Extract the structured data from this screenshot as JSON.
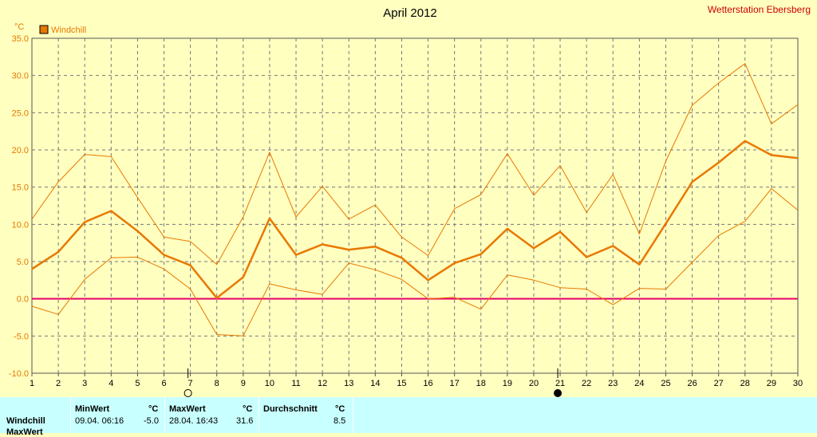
{
  "chart_data": {
    "type": "line",
    "title": "April 2012",
    "station": "Wetterstation Ebersberg",
    "ylabel": "°C",
    "legend": [
      {
        "name": "Windchill",
        "color": "#e87800"
      }
    ],
    "legend_placement": "top-left",
    "ylim": [
      -10,
      35
    ],
    "yticks": [
      "35.0",
      "30.0",
      "25.0",
      "20.0",
      "15.0",
      "10.0",
      "5.0",
      "0.0",
      "-5.0",
      "-10.0"
    ],
    "x": [
      1,
      2,
      3,
      4,
      5,
      6,
      7,
      8,
      9,
      10,
      11,
      12,
      13,
      14,
      15,
      16,
      17,
      18,
      19,
      20,
      21,
      22,
      23,
      24,
      25,
      26,
      27,
      28,
      29,
      30
    ],
    "grid": true,
    "series": [
      {
        "role": "max",
        "values": [
          10.7,
          15.7,
          19.4,
          19.1,
          13.6,
          8.3,
          7.7,
          4.6,
          11.0,
          19.7,
          11.0,
          15.1,
          10.7,
          12.6,
          8.3,
          5.8,
          12.1,
          14.0,
          19.5,
          13.9,
          17.9,
          11.6,
          16.7,
          8.7,
          18.5,
          26.0,
          29.0,
          31.6,
          23.5,
          26.1
        ]
      },
      {
        "role": "mean",
        "name": "Windchill",
        "values": [
          4.0,
          6.3,
          10.3,
          11.8,
          9.1,
          5.9,
          4.5,
          0.1,
          2.9,
          10.8,
          5.9,
          7.3,
          6.6,
          7.0,
          5.5,
          2.5,
          4.8,
          6.0,
          9.4,
          6.8,
          9.0,
          5.6,
          7.1,
          4.6,
          10.1,
          15.7,
          18.3,
          21.2,
          19.3,
          18.9
        ]
      },
      {
        "role": "min",
        "values": [
          -1.0,
          -2.1,
          2.6,
          5.5,
          5.6,
          4.0,
          1.3,
          -4.8,
          -5.0,
          2.0,
          1.2,
          0.6,
          4.8,
          3.9,
          2.6,
          0.0,
          0.2,
          -1.4,
          3.2,
          2.5,
          1.5,
          1.3,
          -0.8,
          1.4,
          1.3,
          4.9,
          8.5,
          10.4,
          14.8,
          11.9
        ]
      }
    ],
    "reference_line": {
      "y": 0,
      "color": "#e8006e"
    },
    "moon_phase_markers": [
      {
        "x": 7,
        "phase": "full"
      },
      {
        "x": 21,
        "phase": "new"
      }
    ]
  },
  "colors": {
    "background": "#ffffc0",
    "series": "#e87800",
    "stats_bg": "#c8ffff",
    "title": "#000000",
    "station": "#d00000"
  },
  "stats": {
    "row_label": "Windchill",
    "row_label2": "MaxWert",
    "min": {
      "header": "MinWert",
      "unit": "°C",
      "datetime": "09.04.  06:16",
      "value": "-5.0"
    },
    "max": {
      "header": "MaxWert",
      "unit": "°C",
      "datetime": "28.04.  16:43",
      "value": "31.6"
    },
    "avg": {
      "header": "Durchschnitt",
      "unit": "°C",
      "value": "8.5"
    }
  }
}
